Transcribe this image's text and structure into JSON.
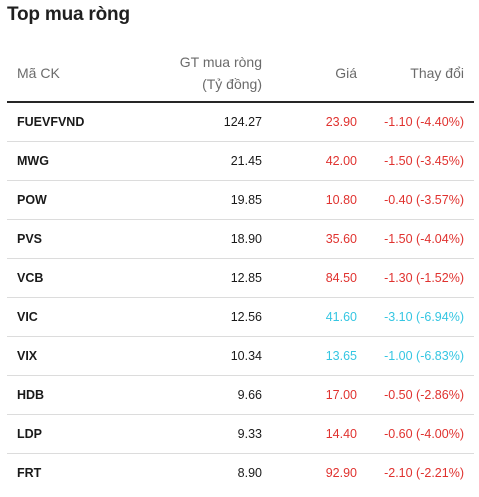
{
  "title": "Top mua ròng",
  "columns": {
    "code": "Mã CK",
    "value_line1": "GT mua ròng",
    "value_line2": "(Tỷ đồng)",
    "price": "Giá",
    "change": "Thay đổi"
  },
  "colors": {
    "down": "#e0322f",
    "floor": "#35c6e2"
  },
  "rows": [
    {
      "code": "FUEVFVND",
      "value": "124.27",
      "price": "23.90",
      "change": "-1.10 (-4.40%)",
      "status": "down"
    },
    {
      "code": "MWG",
      "value": "21.45",
      "price": "42.00",
      "change": "-1.50 (-3.45%)",
      "status": "down"
    },
    {
      "code": "POW",
      "value": "19.85",
      "price": "10.80",
      "change": "-0.40 (-3.57%)",
      "status": "down"
    },
    {
      "code": "PVS",
      "value": "18.90",
      "price": "35.60",
      "change": "-1.50 (-4.04%)",
      "status": "down"
    },
    {
      "code": "VCB",
      "value": "12.85",
      "price": "84.50",
      "change": "-1.30 (-1.52%)",
      "status": "down"
    },
    {
      "code": "VIC",
      "value": "12.56",
      "price": "41.60",
      "change": "-3.10 (-6.94%)",
      "status": "floor"
    },
    {
      "code": "VIX",
      "value": "10.34",
      "price": "13.65",
      "change": "-1.00 (-6.83%)",
      "status": "floor"
    },
    {
      "code": "HDB",
      "value": "9.66",
      "price": "17.00",
      "change": "-0.50 (-2.86%)",
      "status": "down"
    },
    {
      "code": "LDP",
      "value": "9.33",
      "price": "14.40",
      "change": "-0.60 (-4.00%)",
      "status": "down"
    },
    {
      "code": "FRT",
      "value": "8.90",
      "price": "92.90",
      "change": "-2.10 (-2.21%)",
      "status": "down"
    }
  ]
}
